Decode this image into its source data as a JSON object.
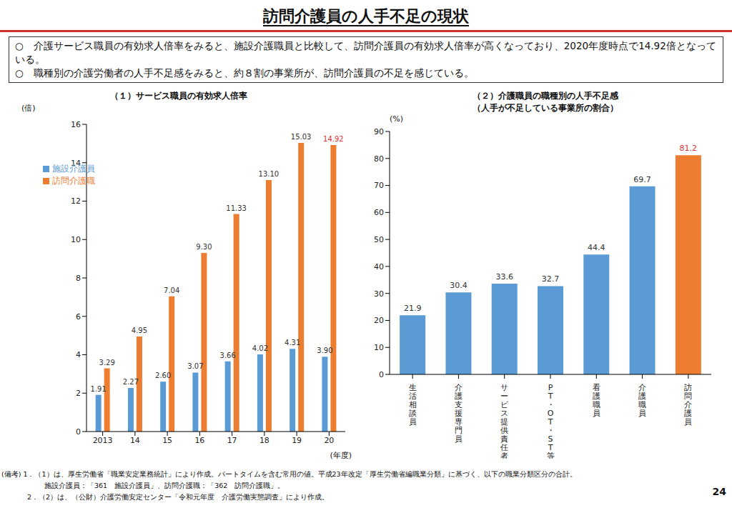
{
  "title": "訪問介護員の人手不足の現状",
  "bullets": [
    "○　介護サービス職員の有効求人倍率をみると、施設介護職員と比較して、訪問介護員の有効求人倍率が高くなっており、2020年度時点で14.92倍となっている。",
    "○　職種別の介護労働者の人手不足感をみると、約８割の事業所が、訪問介護員の不足を感じている。"
  ],
  "notes": [
    "(備考) 1．（1）は、厚生労働省「職業安定業務統計」により作成。パートタイムを含む常用の値。平成23年改定「厚生労働省編職業分類」に基づく、以下の職業分類区分の合計。",
    "施設介護員：「361　施設介護員」、訪問介護職：「362　訪問介護職」。",
    "2．（2）は、（公財）介護労働安定センター「令和元年度　介護労働実態調査」により作成。"
  ],
  "page": "24",
  "chart_data": [
    {
      "type": "bar",
      "title": "（１）サービス職員の有効求人倍率",
      "y_label": "(倍)",
      "x_label": "(年度)",
      "categories": [
        "2013",
        "14",
        "15",
        "16",
        "17",
        "18",
        "19",
        "20"
      ],
      "series": [
        {
          "name": "施設介護員",
          "color": "#5b9bd5",
          "values": [
            1.91,
            2.27,
            2.6,
            3.07,
            3.66,
            4.02,
            4.31,
            3.9
          ],
          "value_labels": [
            "1.91",
            "2.27",
            "2.60",
            "3.07",
            "3.66",
            "4.02",
            "4.31",
            "3.90"
          ]
        },
        {
          "name": "訪問介護職",
          "color": "#ed7d31",
          "values": [
            3.29,
            4.95,
            7.04,
            9.3,
            11.33,
            13.1,
            15.03,
            14.92
          ],
          "value_labels": [
            "3.29",
            "4.95",
            "7.04",
            "9.30",
            "11.33",
            "13.10",
            "15.03",
            "14.92"
          ]
        }
      ],
      "ylim": [
        0,
        16
      ],
      "yticks": [
        0,
        2,
        4,
        6,
        8,
        10,
        12,
        14,
        16
      ],
      "grid": false,
      "legend": "upper left",
      "data_labels": true
    },
    {
      "type": "bar",
      "title": "（２）介護職員の職種別の人手不足感",
      "subtitle": "（人手が不足している事業所の割合）",
      "y_label": "(%)",
      "categories": [
        "生活相談員",
        "介護支援専門員",
        "サービス提供責任者",
        "PT・OT・ST等",
        "看護職員",
        "介護職員",
        "訪問介護員"
      ],
      "values": [
        21.9,
        30.4,
        33.6,
        32.7,
        44.4,
        69.7,
        81.2
      ],
      "colors": [
        "#5b9bd5",
        "#5b9bd5",
        "#5b9bd5",
        "#5b9bd5",
        "#5b9bd5",
        "#5b9bd5",
        "#ed7d31"
      ],
      "ylim": [
        0,
        90
      ],
      "yticks": [
        0,
        10,
        20,
        30,
        40,
        50,
        60,
        70,
        80,
        90
      ],
      "grid": false,
      "data_labels": true
    }
  ]
}
